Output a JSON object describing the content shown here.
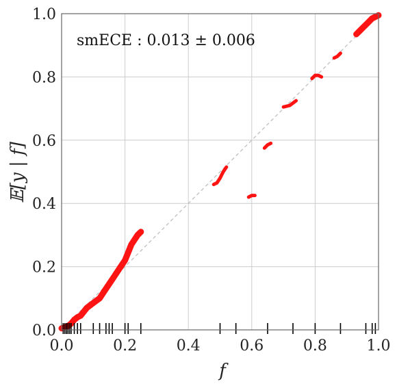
{
  "chart_data": {
    "type": "line",
    "title": "",
    "xlabel": "f",
    "ylabel": "𝔼[y | f]",
    "xlim": [
      0.0,
      1.0
    ],
    "ylim": [
      0.0,
      1.0
    ],
    "xticks": [
      "0.0",
      "0.2",
      "0.4",
      "0.6",
      "0.8",
      "1.0"
    ],
    "yticks": [
      "0.0",
      "0.2",
      "0.4",
      "0.6",
      "0.8",
      "1.0"
    ],
    "grid": true,
    "annotation": "smECE : 0.013 ± 0.006",
    "colors": {
      "calibration_curve": "#ff0000",
      "diagonal": "#bbbbbb",
      "grid": "#cccccc",
      "rug": "#000000"
    },
    "series": [
      {
        "x": [
          0.0,
          0.01,
          0.02,
          0.03,
          0.04,
          0.05,
          0.06,
          0.08,
          0.1,
          0.12,
          0.14,
          0.16,
          0.18,
          0.2,
          0.22,
          0.24,
          0.25
        ],
        "y": [
          0.005,
          0.008,
          0.012,
          0.02,
          0.032,
          0.04,
          0.045,
          0.07,
          0.085,
          0.1,
          0.13,
          0.16,
          0.19,
          0.22,
          0.27,
          0.3,
          0.31
        ]
      },
      {
        "x": [
          0.48,
          0.49,
          0.5,
          0.51,
          0.52
        ],
        "y": [
          0.46,
          0.465,
          0.48,
          0.5,
          0.515
        ]
      },
      {
        "x": [
          0.59,
          0.6,
          0.61
        ],
        "y": [
          0.42,
          0.425,
          0.425
        ]
      },
      {
        "x": [
          0.64,
          0.65,
          0.66
        ],
        "y": [
          0.575,
          0.585,
          0.59
        ]
      },
      {
        "x": [
          0.7,
          0.72,
          0.74
        ],
        "y": [
          0.705,
          0.71,
          0.725
        ]
      },
      {
        "x": [
          0.79,
          0.8,
          0.81,
          0.82
        ],
        "y": [
          0.795,
          0.805,
          0.805,
          0.8
        ]
      },
      {
        "x": [
          0.86,
          0.87,
          0.88
        ],
        "y": [
          0.86,
          0.865,
          0.875
        ]
      },
      {
        "x": [
          0.93,
          0.94,
          0.95,
          0.96,
          0.97,
          0.98,
          0.99,
          1.0
        ],
        "y": [
          0.935,
          0.945,
          0.955,
          0.965,
          0.975,
          0.985,
          0.99,
          0.995
        ]
      }
    ],
    "rug_x": [
      0.005,
      0.01,
      0.015,
      0.02,
      0.025,
      0.03,
      0.04,
      0.05,
      0.06,
      0.1,
      0.12,
      0.14,
      0.15,
      0.16,
      0.2,
      0.21,
      0.25,
      0.5,
      0.55,
      0.65,
      0.73,
      0.8,
      0.88,
      0.96,
      0.98,
      0.99
    ]
  }
}
